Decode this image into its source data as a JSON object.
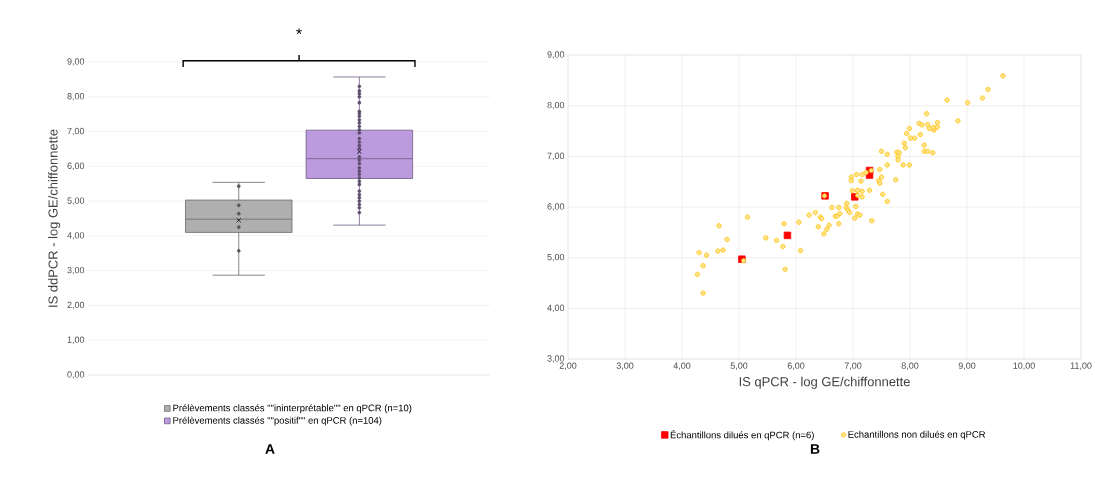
{
  "chart_data": [
    {
      "type": "box",
      "categories": [
        null
      ],
      "ylabel": "IS ddPCR - log GE/chiffonnette",
      "ylim": [
        0,
        9
      ],
      "yticks": [
        {
          "value": 0,
          "label": "0,00"
        },
        {
          "value": 1,
          "label": "1,00"
        },
        {
          "value": 2,
          "label": "2,00"
        },
        {
          "value": 3,
          "label": "3,00"
        },
        {
          "value": 4,
          "label": "4,00"
        },
        {
          "value": 5,
          "label": "5,00"
        },
        {
          "value": 6,
          "label": "6,00"
        },
        {
          "value": 7,
          "label": "7,00"
        },
        {
          "value": 8,
          "label": "8,00"
        },
        {
          "value": 9,
          "label": "9,00"
        }
      ],
      "grid": "y",
      "legend": "bottom",
      "tick_labels": "y",
      "annotations": [
        "*",
        "A"
      ],
      "series": [
        {
          "name": "Prélèvements classés \"\"ininterprétable\"\" en qPCR (n=10)",
          "color": "#afafaf",
          "boxes": [
            {
              "low": 2.87,
              "q1": 4.1,
              "median": 4.48,
              "q3": 5.03,
              "high": 5.54,
              "mean": 4.45,
              "outliers": [
                5.43,
                4.88,
                4.64,
                4.25,
                3.57
              ]
            }
          ]
        },
        {
          "name": "Prélèvements classés \"\"positif\"\" en qPCR (n=104)",
          "color": "#bb9add",
          "boxes": [
            {
              "low": 4.31,
              "q1": 5.65,
              "median": 6.22,
              "q3": 7.04,
              "high": 8.57,
              "mean": 6.42,
              "outliers": [
                8.3,
                8.17,
                8.09,
                8.0,
                7.83,
                7.58,
                7.52,
                7.44,
                7.34,
                7.25,
                7.15,
                7.05,
                6.96,
                6.8,
                6.7,
                6.6,
                6.51,
                6.27,
                6.18,
                6.08,
                5.96,
                5.86,
                5.77,
                5.67,
                5.57,
                5.48,
                5.29,
                5.19,
                5.1,
                5.0,
                4.9,
                4.81,
                4.67
              ]
            }
          ]
        }
      ]
    },
    {
      "type": "scatter",
      "xlabel": "IS qPCR - log GE/chiffonnette",
      "xlim": [
        2,
        11
      ],
      "xticks": [
        {
          "value": 2,
          "label": "2,00"
        },
        {
          "value": 3,
          "label": "3,00"
        },
        {
          "value": 4,
          "label": "4,00"
        },
        {
          "value": 5,
          "label": "5,00"
        },
        {
          "value": 6,
          "label": "6,00"
        },
        {
          "value": 7,
          "label": "7,00"
        },
        {
          "value": 8,
          "label": "8,00"
        },
        {
          "value": 9,
          "label": "9,00"
        },
        {
          "value": 10,
          "label": "10,00"
        },
        {
          "value": 11,
          "label": "11,00"
        }
      ],
      "ylim": [
        3,
        9
      ],
      "yticks": [
        {
          "value": 3,
          "label": "3,00"
        },
        {
          "value": 4,
          "label": "4,00"
        },
        {
          "value": 5,
          "label": "5,00"
        },
        {
          "value": 6,
          "label": "6,00"
        },
        {
          "value": 7,
          "label": "7,00"
        },
        {
          "value": 8,
          "label": "8,00"
        },
        {
          "value": 9,
          "label": "9,00"
        }
      ],
      "grid": true,
      "legend": "bottom",
      "annotations": [
        "B"
      ],
      "series": [
        {
          "name": "Échantillons dilués en qPCR (n=6)",
          "color": "#ff0000",
          "marker": "square",
          "x": [
            5.05,
            5.85,
            6.51,
            7.03,
            7.29,
            7.29
          ],
          "values": [
            4.97,
            5.44,
            6.22,
            6.2,
            6.63,
            6.72
          ]
        },
        {
          "name": "Echantillons non dilués en qPCR",
          "color": "#ffc000",
          "marker": "circle",
          "x": [
            9.63,
            9.37,
            9.27,
            9.01,
            8.65,
            8.84,
            8.29,
            8.16,
            8.21,
            8.31,
            8.34,
            8.42,
            8.41,
            8.48,
            8.48,
            7.99,
            7.94,
            8.01,
            8.08,
            8.18,
            7.9,
            7.92,
            8.25,
            8.25,
            8.31,
            8.4,
            7.77,
            7.81,
            7.79,
            7.79,
            7.88,
            7.99,
            7.5,
            7.6,
            7.6,
            7.47,
            7.5,
            7.45,
            7.47,
            7.75,
            7.52,
            7.6,
            7.32,
            7.23,
            7.16,
            7.06,
            6.97,
            6.97,
            7.14,
            6.99,
            7.08,
            7.16,
            7.29,
            7.08,
            7.16,
            7.05,
            7.03,
            7.08,
            7.12,
            7.33,
            6.5,
            6.63,
            6.75,
            6.89,
            6.88,
            6.91,
            6.94,
            6.77,
            6.69,
            6.72,
            6.34,
            6.23,
            6.43,
            6.45,
            6.39,
            6.58,
            6.54,
            6.49,
            6.75,
            6.05,
            5.79,
            5.15,
            5.47,
            5.66,
            5.77,
            6.08,
            4.65,
            4.79,
            4.72,
            4.63,
            4.3,
            4.43,
            4.37,
            4.27,
            4.37,
            5.81,
            5.08
          ],
          "values": [
            8.59,
            8.32,
            8.15,
            8.06,
            8.11,
            7.7,
            7.84,
            7.65,
            7.62,
            7.63,
            7.55,
            7.52,
            7.57,
            7.58,
            7.67,
            7.55,
            7.45,
            7.36,
            7.36,
            7.43,
            7.26,
            7.17,
            7.22,
            7.1,
            7.1,
            7.07,
            7.08,
            7.07,
            7.0,
            6.93,
            6.83,
            6.83,
            7.1,
            7.04,
            6.83,
            6.74,
            6.59,
            6.52,
            6.47,
            6.54,
            6.25,
            6.11,
            6.72,
            6.68,
            6.64,
            6.64,
            6.59,
            6.52,
            6.51,
            6.32,
            6.33,
            6.31,
            6.33,
            6.23,
            6.2,
            6.01,
            5.78,
            5.86,
            5.84,
            5.73,
            6.22,
            5.99,
            5.99,
            6.07,
            5.99,
            5.94,
            5.89,
            5.87,
            5.82,
            5.82,
            5.89,
            5.84,
            5.8,
            5.77,
            5.61,
            5.64,
            5.56,
            5.47,
            5.67,
            5.7,
            5.67,
            5.8,
            5.39,
            5.34,
            5.22,
            5.14,
            5.63,
            5.36,
            5.15,
            5.13,
            5.1,
            5.05,
            4.84,
            4.67,
            4.3,
            4.77,
            4.94
          ]
        }
      ]
    }
  ]
}
